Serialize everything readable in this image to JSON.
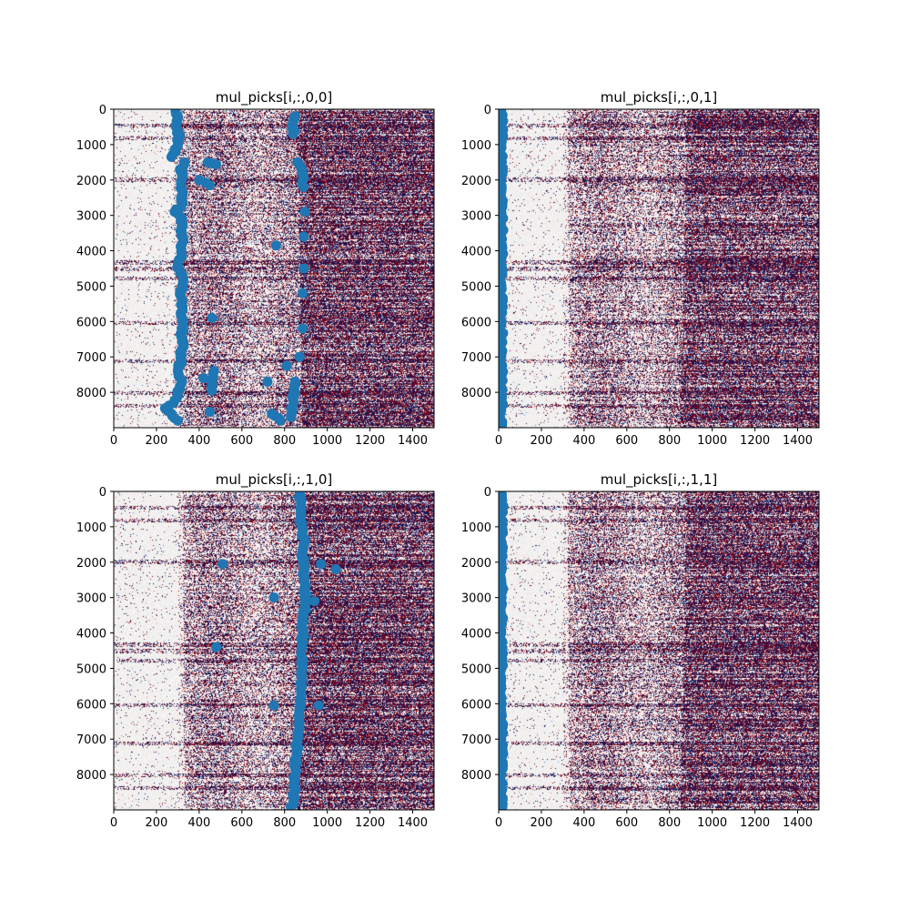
{
  "chart_data": [
    {
      "type": "heatmap",
      "title": "mul_picks[i,:,0,0]",
      "xlabel": "",
      "ylabel": "",
      "xlim": [
        0,
        1500
      ],
      "ylim": [
        9000,
        0
      ],
      "xticks": [
        0,
        200,
        400,
        600,
        800,
        1000,
        1200,
        1400
      ],
      "yticks": [
        0,
        1000,
        2000,
        3000,
        4000,
        5000,
        6000,
        7000,
        8000
      ],
      "colormap": "seismic-like (navy / white / dark red)",
      "background": {
        "quiet_until": 280,
        "onset_start": 290,
        "onset_end": 310,
        "dense_start": 860,
        "dense_end": 880
      },
      "pick_color": "#1f77b4",
      "picks": [
        {
          "x": 290,
          "y": 0
        },
        {
          "x": 300,
          "y": 200
        },
        {
          "x": 295,
          "y": 400
        },
        {
          "x": 300,
          "y": 600
        },
        {
          "x": 305,
          "y": 800
        },
        {
          "x": 300,
          "y": 1000
        },
        {
          "x": 290,
          "y": 1200
        },
        {
          "x": 270,
          "y": 1350
        },
        {
          "x": 330,
          "y": 1500
        },
        {
          "x": 310,
          "y": 1700
        },
        {
          "x": 320,
          "y": 1900
        },
        {
          "x": 315,
          "y": 2100
        },
        {
          "x": 320,
          "y": 2300
        },
        {
          "x": 315,
          "y": 2500
        },
        {
          "x": 318,
          "y": 2700
        },
        {
          "x": 285,
          "y": 2900
        },
        {
          "x": 320,
          "y": 3100
        },
        {
          "x": 322,
          "y": 3300
        },
        {
          "x": 320,
          "y": 3500
        },
        {
          "x": 320,
          "y": 3800
        },
        {
          "x": 318,
          "y": 4100
        },
        {
          "x": 300,
          "y": 4400
        },
        {
          "x": 322,
          "y": 4700
        },
        {
          "x": 320,
          "y": 5000
        },
        {
          "x": 315,
          "y": 5300
        },
        {
          "x": 322,
          "y": 5600
        },
        {
          "x": 320,
          "y": 5900
        },
        {
          "x": 318,
          "y": 6200
        },
        {
          "x": 322,
          "y": 6500
        },
        {
          "x": 318,
          "y": 6800
        },
        {
          "x": 315,
          "y": 7100
        },
        {
          "x": 300,
          "y": 7400
        },
        {
          "x": 320,
          "y": 7700
        },
        {
          "x": 310,
          "y": 7900
        },
        {
          "x": 300,
          "y": 8100
        },
        {
          "x": 280,
          "y": 8300
        },
        {
          "x": 240,
          "y": 8450
        },
        {
          "x": 270,
          "y": 8600
        },
        {
          "x": 300,
          "y": 8800
        },
        {
          "x": 850,
          "y": 200
        },
        {
          "x": 840,
          "y": 700
        },
        {
          "x": 860,
          "y": 1500
        },
        {
          "x": 880,
          "y": 1700
        },
        {
          "x": 890,
          "y": 2200
        },
        {
          "x": 895,
          "y": 2900
        },
        {
          "x": 890,
          "y": 3600
        },
        {
          "x": 890,
          "y": 4500
        },
        {
          "x": 885,
          "y": 5200
        },
        {
          "x": 885,
          "y": 6200
        },
        {
          "x": 870,
          "y": 7000
        },
        {
          "x": 850,
          "y": 7700
        },
        {
          "x": 840,
          "y": 8200
        },
        {
          "x": 830,
          "y": 8700
        },
        {
          "x": 440,
          "y": 1500
        },
        {
          "x": 480,
          "y": 1560
        },
        {
          "x": 400,
          "y": 2000
        },
        {
          "x": 450,
          "y": 2150
        },
        {
          "x": 760,
          "y": 3850
        },
        {
          "x": 460,
          "y": 5900
        },
        {
          "x": 420,
          "y": 7600
        },
        {
          "x": 470,
          "y": 7400
        },
        {
          "x": 460,
          "y": 7950
        },
        {
          "x": 720,
          "y": 7700
        },
        {
          "x": 450,
          "y": 8550
        },
        {
          "x": 740,
          "y": 8600
        },
        {
          "x": 780,
          "y": 8800
        },
        {
          "x": 810,
          "y": 7250
        }
      ]
    },
    {
      "type": "heatmap",
      "title": "mul_picks[i,:,0,1]",
      "xlabel": "",
      "ylabel": "",
      "xlim": [
        0,
        1500
      ],
      "ylim": [
        9000,
        0
      ],
      "xticks": [
        0,
        200,
        400,
        600,
        800,
        1000,
        1200,
        1400
      ],
      "yticks": [
        0,
        1000,
        2000,
        3000,
        4000,
        5000,
        6000,
        7000,
        8000
      ],
      "colormap": "seismic-like (navy / white / dark red)",
      "background": {
        "quiet_until": 300,
        "onset_start": 320,
        "onset_end": 330,
        "dense_start": 880,
        "dense_end": 850
      },
      "pick_color": "#1f77b4",
      "picks": [
        {
          "x": 12,
          "y": 0
        },
        {
          "x": 14,
          "y": 500
        },
        {
          "x": 12,
          "y": 1000
        },
        {
          "x": 15,
          "y": 1500
        },
        {
          "x": 13,
          "y": 2000
        },
        {
          "x": 12,
          "y": 2500
        },
        {
          "x": 14,
          "y": 3000
        },
        {
          "x": 13,
          "y": 3500
        },
        {
          "x": 12,
          "y": 4000
        },
        {
          "x": 15,
          "y": 4500
        },
        {
          "x": 13,
          "y": 5000
        },
        {
          "x": 12,
          "y": 5500
        },
        {
          "x": 14,
          "y": 6000
        },
        {
          "x": 13,
          "y": 6500
        },
        {
          "x": 12,
          "y": 7000
        },
        {
          "x": 15,
          "y": 7500
        },
        {
          "x": 13,
          "y": 8000
        },
        {
          "x": 12,
          "y": 8500
        },
        {
          "x": 14,
          "y": 9000
        }
      ]
    },
    {
      "type": "heatmap",
      "title": "mul_picks[i,:,1,0]",
      "xlabel": "",
      "ylabel": "",
      "xlim": [
        0,
        1500
      ],
      "ylim": [
        9000,
        0
      ],
      "xticks": [
        0,
        200,
        400,
        600,
        800,
        1000,
        1200,
        1400
      ],
      "yticks": [
        0,
        1000,
        2000,
        3000,
        4000,
        5000,
        6000,
        7000,
        8000
      ],
      "colormap": "seismic-like (navy / white / dark red)",
      "background": {
        "quiet_until": 300,
        "onset_start": 320,
        "onset_end": 330,
        "dense_start": 880,
        "dense_end": 850
      },
      "pick_color": "#1f77b4",
      "picks": [
        {
          "x": 870,
          "y": 0
        },
        {
          "x": 875,
          "y": 500
        },
        {
          "x": 880,
          "y": 1000
        },
        {
          "x": 890,
          "y": 1500
        },
        {
          "x": 885,
          "y": 2000
        },
        {
          "x": 890,
          "y": 2500
        },
        {
          "x": 895,
          "y": 3000
        },
        {
          "x": 890,
          "y": 3500
        },
        {
          "x": 885,
          "y": 4000
        },
        {
          "x": 880,
          "y": 4500
        },
        {
          "x": 885,
          "y": 5000
        },
        {
          "x": 880,
          "y": 5500
        },
        {
          "x": 875,
          "y": 6000
        },
        {
          "x": 870,
          "y": 6500
        },
        {
          "x": 860,
          "y": 7000
        },
        {
          "x": 855,
          "y": 7500
        },
        {
          "x": 850,
          "y": 8000
        },
        {
          "x": 845,
          "y": 8500
        },
        {
          "x": 830,
          "y": 9000
        },
        {
          "x": 510,
          "y": 2050
        },
        {
          "x": 750,
          "y": 3000
        },
        {
          "x": 480,
          "y": 4400
        },
        {
          "x": 750,
          "y": 6050
        },
        {
          "x": 960,
          "y": 6050
        },
        {
          "x": 970,
          "y": 2050
        },
        {
          "x": 1040,
          "y": 2200
        },
        {
          "x": 940,
          "y": 3100
        }
      ]
    },
    {
      "type": "heatmap",
      "title": "mul_picks[i,:,1,1]",
      "xlabel": "",
      "ylabel": "",
      "xlim": [
        0,
        1500
      ],
      "ylim": [
        9000,
        0
      ],
      "xticks": [
        0,
        200,
        400,
        600,
        800,
        1000,
        1200,
        1400
      ],
      "yticks": [
        0,
        1000,
        2000,
        3000,
        4000,
        5000,
        6000,
        7000,
        8000
      ],
      "colormap": "seismic-like (navy / white / dark red)",
      "background": {
        "quiet_until": 300,
        "onset_start": 320,
        "onset_end": 330,
        "dense_start": 880,
        "dense_end": 850
      },
      "pick_color": "#1f77b4",
      "picks": [
        {
          "x": 12,
          "y": 0
        },
        {
          "x": 14,
          "y": 500
        },
        {
          "x": 12,
          "y": 1000
        },
        {
          "x": 15,
          "y": 1500
        },
        {
          "x": 13,
          "y": 2000
        },
        {
          "x": 12,
          "y": 2500
        },
        {
          "x": 14,
          "y": 3000
        },
        {
          "x": 13,
          "y": 3500
        },
        {
          "x": 12,
          "y": 4000
        },
        {
          "x": 15,
          "y": 4500
        },
        {
          "x": 13,
          "y": 5000
        },
        {
          "x": 12,
          "y": 5500
        },
        {
          "x": 14,
          "y": 6000
        },
        {
          "x": 13,
          "y": 6500
        },
        {
          "x": 12,
          "y": 7000
        },
        {
          "x": 15,
          "y": 7500
        },
        {
          "x": 13,
          "y": 8000
        },
        {
          "x": 12,
          "y": 8500
        },
        {
          "x": 14,
          "y": 9000
        }
      ]
    }
  ]
}
